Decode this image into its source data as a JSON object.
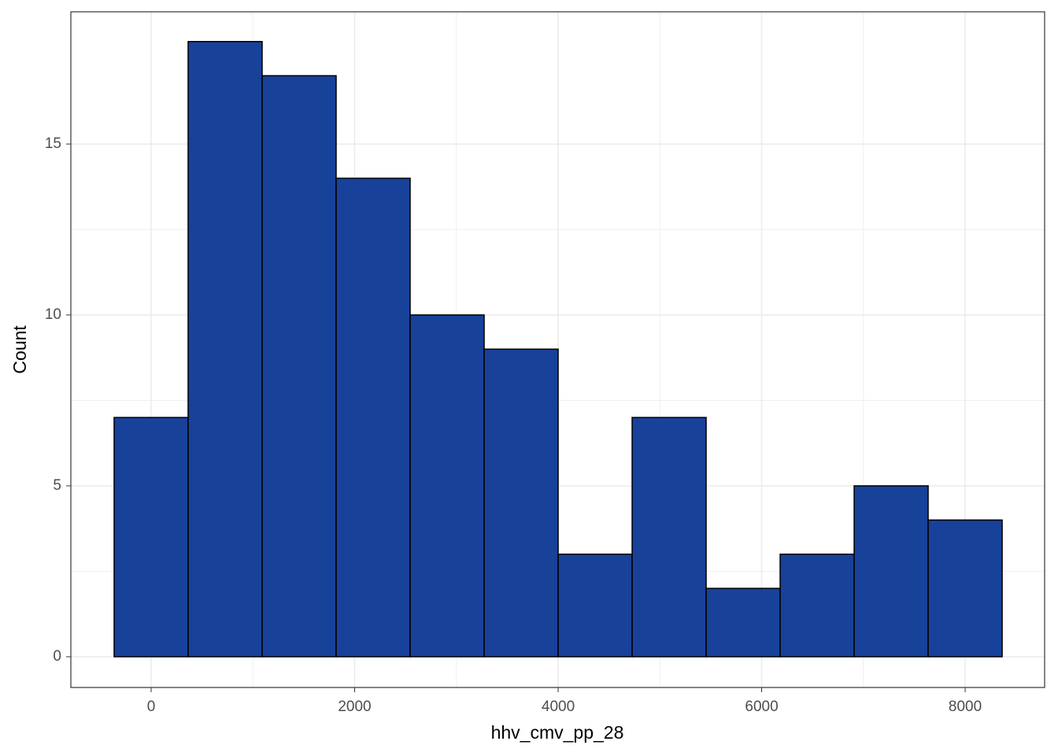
{
  "chart_data": {
    "type": "histogram",
    "x_label": "hhv_cmv_pp_28",
    "y_label": "Count",
    "bins": [
      -363.64,
      363.64,
      1090.91,
      1818.18,
      2545.45,
      3272.73,
      4000,
      4727.27,
      5454.55,
      6181.82,
      6909.09,
      7636.36,
      8363.64
    ],
    "values": [
      7,
      18,
      17,
      14,
      10,
      9,
      3,
      7,
      2,
      3,
      5,
      4
    ],
    "color": "#18419a",
    "edge_color": "#000000",
    "xlim": [
      -789,
      8781
    ],
    "xticks": [
      0,
      2000,
      4000,
      6000,
      8000
    ],
    "ylim": [
      -0.9,
      18.87
    ],
    "yticks": [
      0,
      5,
      10,
      15
    ],
    "grid": true
  }
}
